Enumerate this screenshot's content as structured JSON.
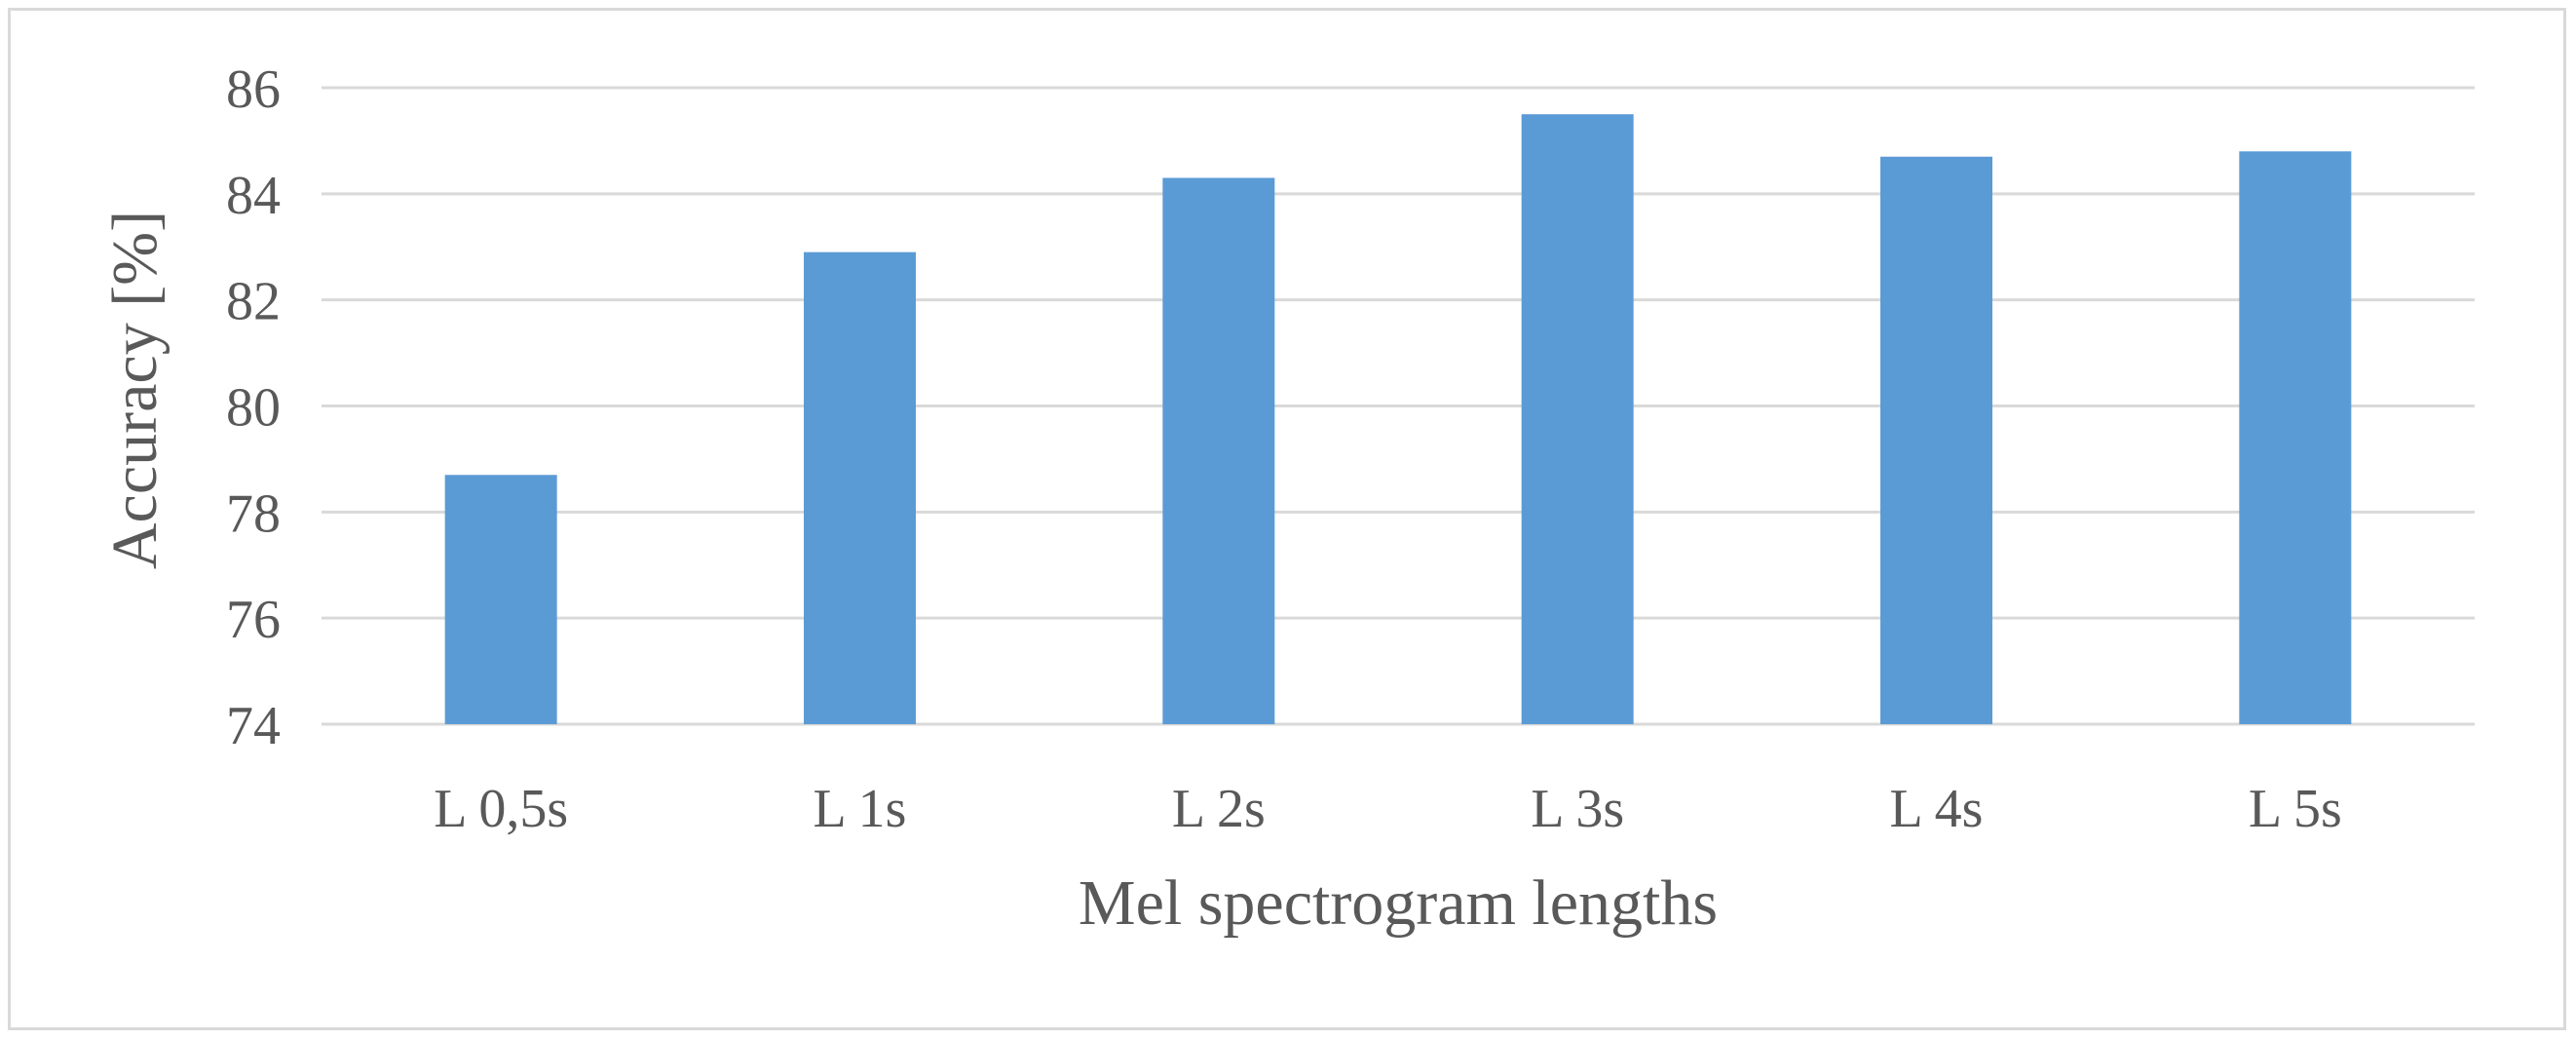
{
  "chart_data": {
    "type": "bar",
    "title": "",
    "xlabel": "Mel spectrogram lengths",
    "ylabel": "Accuracy [%]",
    "categories": [
      "L 0,5s",
      "L 1s",
      "L 2s",
      "L 3s",
      "L 4s",
      "L 5s"
    ],
    "values": [
      78.7,
      82.9,
      84.3,
      85.5,
      84.7,
      84.8
    ],
    "ylim": [
      74,
      86
    ],
    "yticks": [
      74,
      76,
      78,
      80,
      82,
      84,
      86
    ],
    "grid": true,
    "legend": "none",
    "colors": {
      "bar": "#5b9bd5",
      "grid": "#d9d9d9",
      "text": "#595959"
    }
  }
}
